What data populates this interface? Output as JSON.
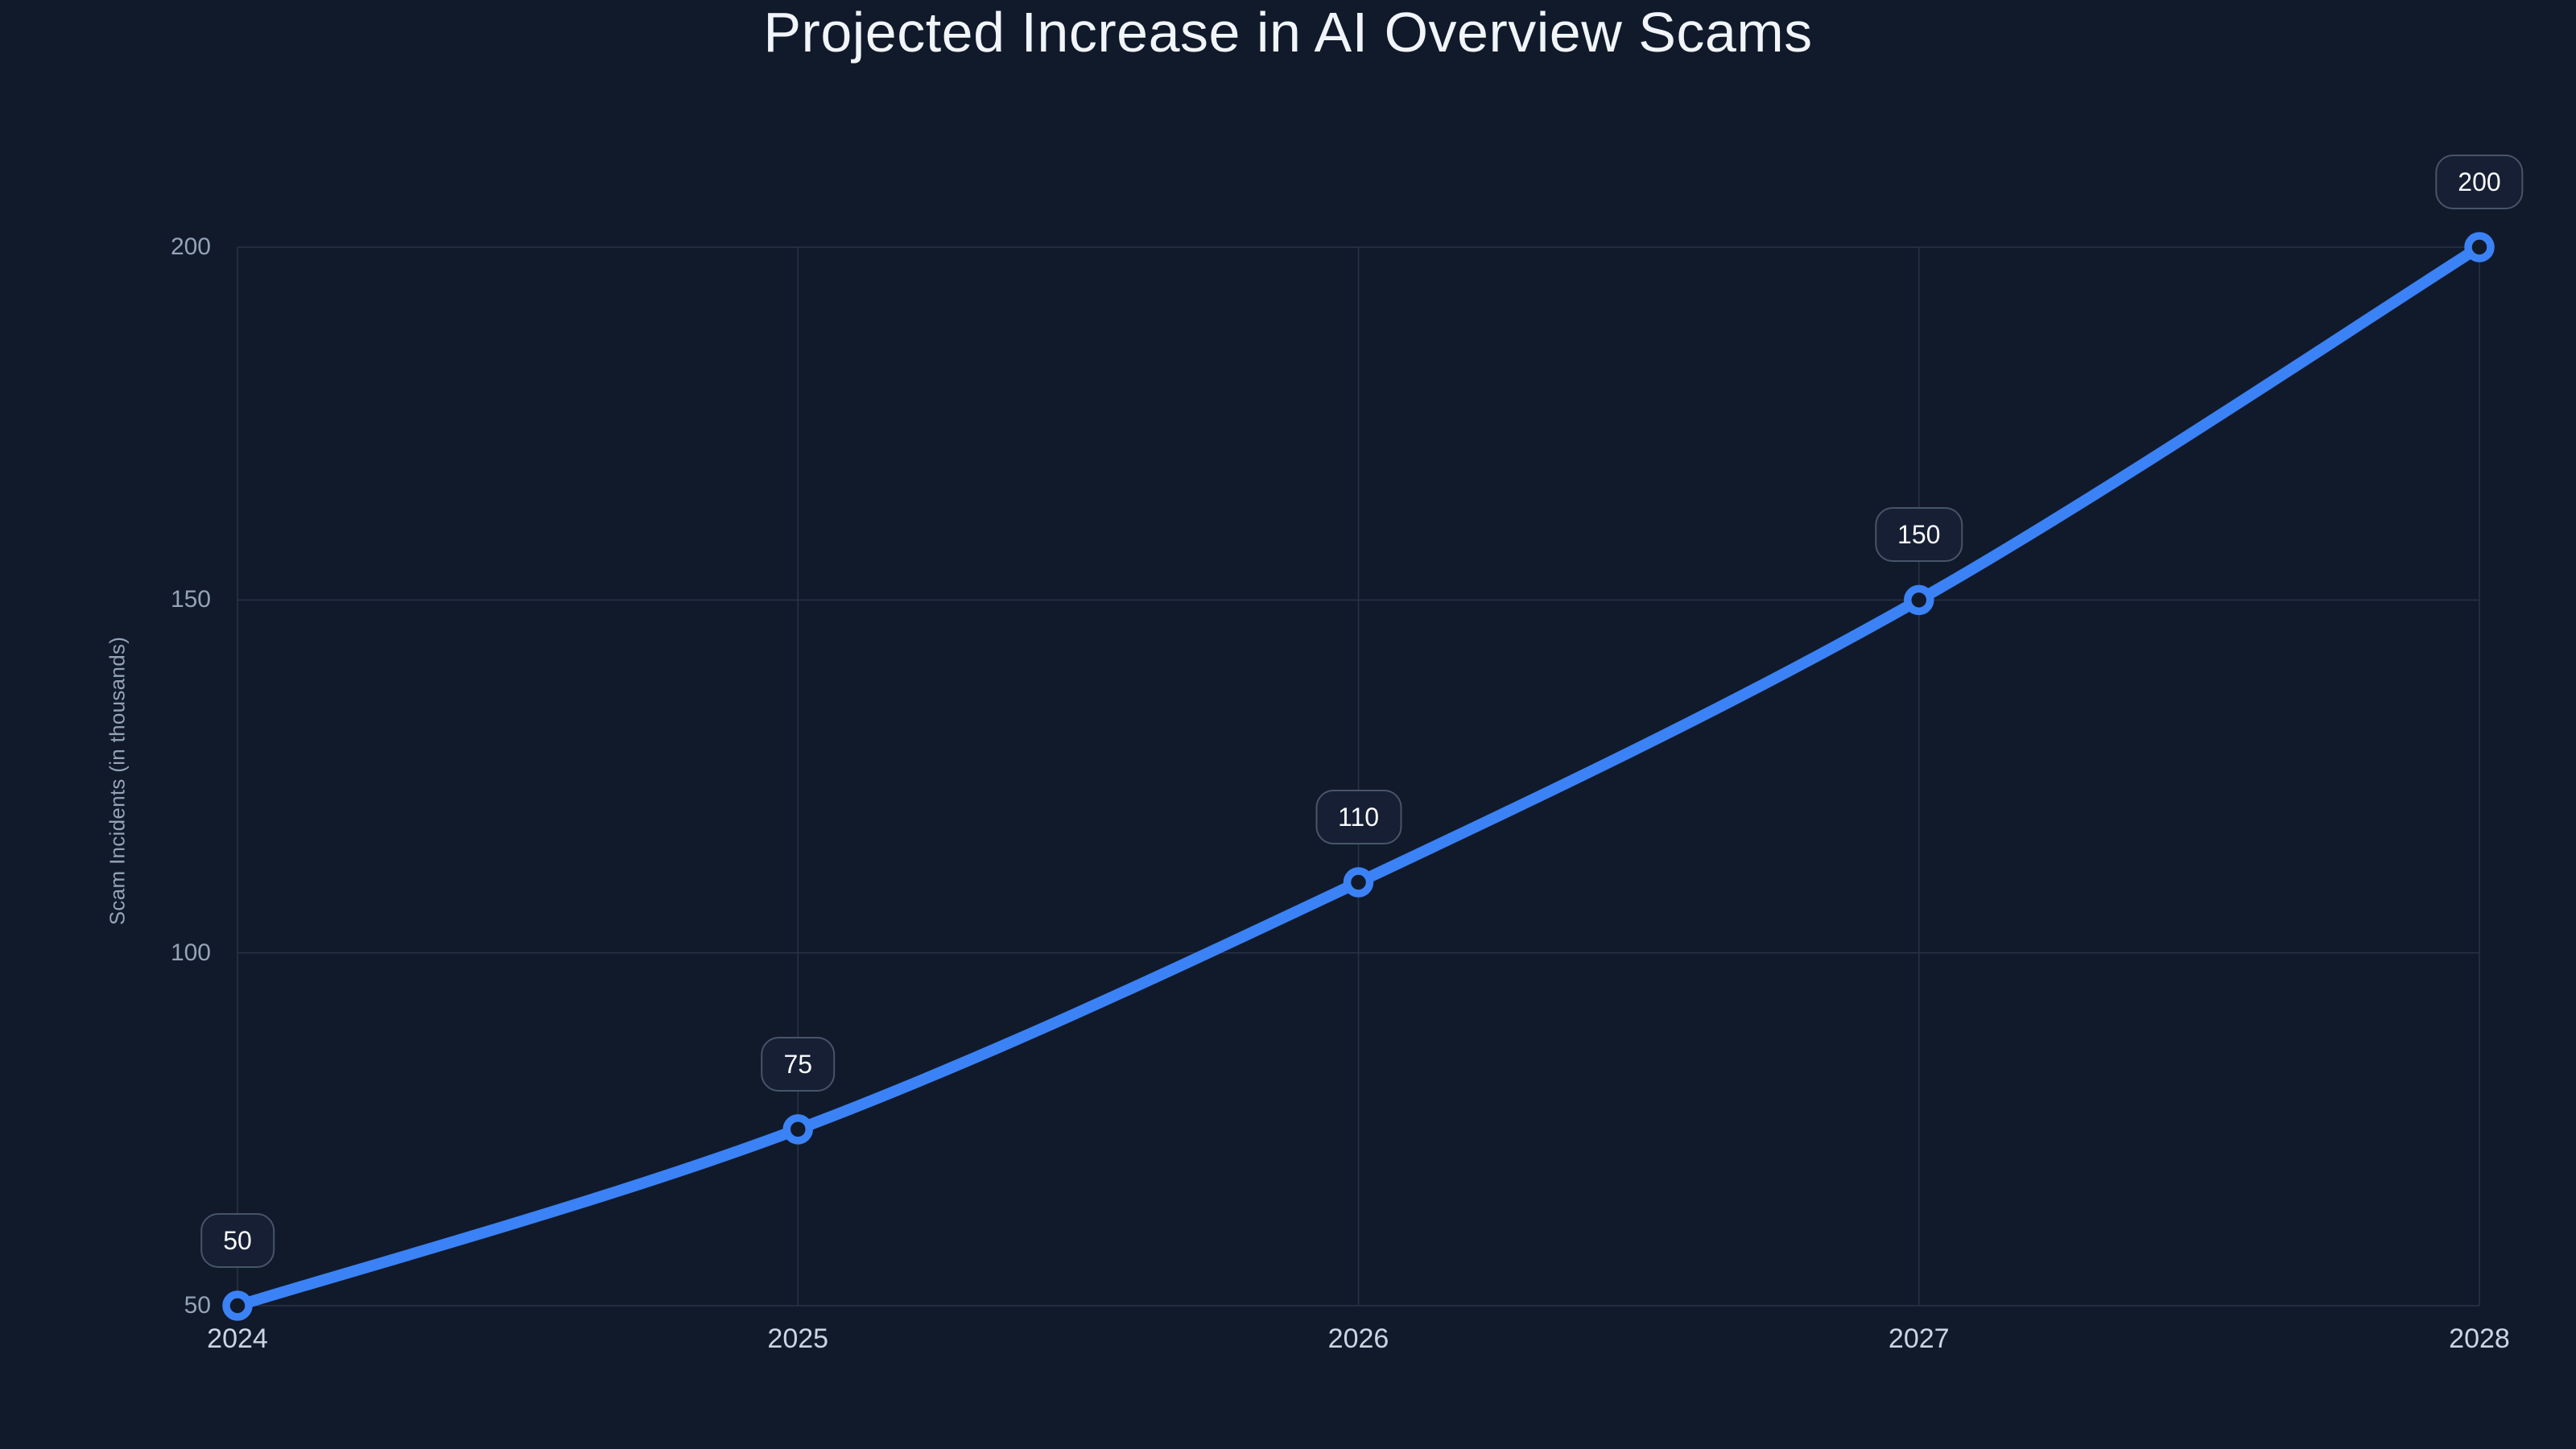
{
  "chart_data": {
    "type": "line",
    "title": "Projected Increase in AI Overview Scams",
    "xlabel": "",
    "ylabel": "Scam Incidents (in thousands)",
    "categories": [
      "2024",
      "2025",
      "2026",
      "2027",
      "2028"
    ],
    "series": [
      {
        "name": "Scam Incidents",
        "values": [
          50,
          75,
          110,
          150,
          200
        ]
      }
    ],
    "point_labels": [
      "50",
      "75",
      "110",
      "150",
      "200"
    ],
    "y_ticks": [
      50,
      100,
      150,
      200
    ],
    "ylim": [
      50,
      200
    ],
    "grid": true,
    "legend_position": "none",
    "colors": {
      "background": "#111a2b",
      "line": "#3b82f6",
      "grid": "#2a3346",
      "y_tick_text": "#94a3b8",
      "x_tick_text": "#cbd5e1",
      "title_text": "#f1f5f9",
      "badge_background": "#161f33",
      "badge_border": "#475569",
      "badge_text": "#f8fafc"
    }
  }
}
